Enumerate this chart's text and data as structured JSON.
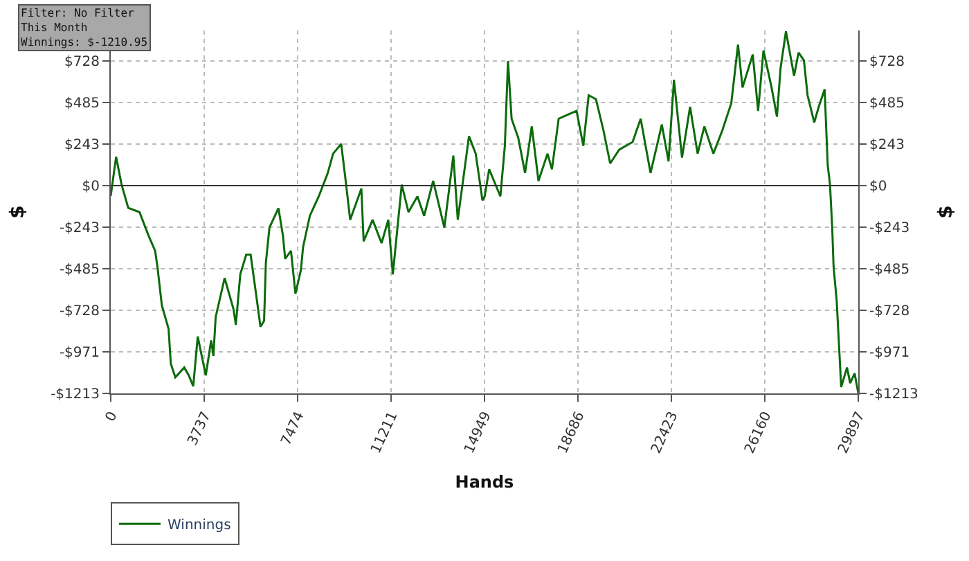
{
  "chart_data": {
    "type": "line",
    "xlabel": "Hands",
    "ylabel": "$",
    "y2label": "$",
    "annotations": [
      "Filter: No Filter\nThis Month\nWinnings: $-1210.95"
    ],
    "series": [
      {
        "name": "Winnings",
        "color": "#0b6b0b",
        "x": [
          0,
          215,
          430,
          700,
          1150,
          1506,
          1775,
          1866,
          2044,
          2313,
          2403,
          2582,
          2941,
          3120,
          3300,
          3479,
          3800,
          4016,
          4106,
          4196,
          4555,
          4912,
          5003,
          5181,
          5418,
          5595,
          5810,
          5988,
          6133,
          6205,
          6348,
          6707,
          6886,
          6976,
          7209,
          7387,
          7603,
          7693,
          7962,
          8321,
          8680,
          8894,
          9217,
          9397,
          9576,
          10024,
          10114,
          10473,
          10832,
          11101,
          11282,
          11639,
          11908,
          12266,
          12535,
          12895,
          13342,
          13702,
          13880,
          14328,
          14597,
          14866,
          14956,
          15135,
          15584,
          15763,
          15888,
          16032,
          16301,
          16570,
          16839,
          17108,
          17468,
          17646,
          17915,
          18276,
          18631,
          18900,
          19115,
          19406,
          19706,
          19975,
          20334,
          20872,
          21195,
          21589,
          22041,
          22310,
          22526,
          22848,
          23171,
          23472,
          23741,
          24102,
          24461,
          24819,
          25088,
          25268,
          25677,
          25892,
          26107,
          26430,
          26645,
          26790,
          27005,
          27330,
          27509,
          27724,
          27869,
          28137,
          28315,
          28552,
          28676,
          28767,
          28855,
          28910,
          29036,
          29214,
          29447,
          29573,
          29751,
          29897
        ],
        "values": [
          -60,
          168,
          7,
          -130,
          -155,
          -290,
          -381,
          -472,
          -699,
          -836,
          -1040,
          -1119,
          -1062,
          -1108,
          -1171,
          -881,
          -1108,
          -904,
          -994,
          -768,
          -540,
          -722,
          -813,
          -518,
          -404,
          -404,
          -631,
          -824,
          -790,
          -449,
          -245,
          -132,
          -291,
          -427,
          -381,
          -631,
          -495,
          -359,
          -177,
          -63,
          73,
          186,
          243,
          27,
          -200,
          -18,
          -325,
          -200,
          -336,
          -200,
          -518,
          5,
          -155,
          -63,
          -177,
          27,
          -245,
          175,
          -200,
          288,
          186,
          -86,
          -63,
          95,
          -63,
          232,
          727,
          390,
          277,
          73,
          345,
          27,
          186,
          95,
          390,
          413,
          436,
          232,
          527,
          504,
          322,
          129,
          209,
          254,
          390,
          73,
          356,
          141,
          617,
          163,
          459,
          186,
          345,
          186,
          322,
          481,
          822,
          572,
          765,
          436,
          788,
          572,
          402,
          686,
          900,
          640,
          776,
          731,
          527,
          368,
          459,
          561,
          118,
          5,
          -245,
          -472,
          -676,
          -1176,
          -1062,
          -1153,
          -1096,
          -1211
        ]
      }
    ],
    "xlim": [
      0,
      29897
    ],
    "xticks": [
      0,
      3737,
      7474,
      11211,
      14949,
      18686,
      22423,
      26160,
      29897
    ],
    "ylim": [
      -1213,
      905
    ],
    "yticks": [
      {
        "value": -1213,
        "label": "-$1213"
      },
      {
        "value": -971,
        "label": "-$971"
      },
      {
        "value": -728,
        "label": "-$728"
      },
      {
        "value": -485,
        "label": "-$485"
      },
      {
        "value": -243,
        "label": "-$243"
      },
      {
        "value": 0,
        "label": "$0"
      },
      {
        "value": 243,
        "label": "$243"
      },
      {
        "value": 485,
        "label": "$485"
      },
      {
        "value": 728,
        "label": "$728"
      }
    ],
    "y2lim": [
      -1213,
      905
    ],
    "y2ticks": [
      {
        "value": -1213,
        "label": "-$1213"
      },
      {
        "value": -971,
        "label": "-$971"
      },
      {
        "value": -728,
        "label": "-$728"
      },
      {
        "value": -485,
        "label": "-$485"
      },
      {
        "value": -243,
        "label": "-$243"
      },
      {
        "value": 0,
        "label": "$0"
      },
      {
        "value": 243,
        "label": "$243"
      },
      {
        "value": 485,
        "label": "$485"
      },
      {
        "value": 728,
        "label": "$728"
      }
    ],
    "ref_lines": [
      {
        "axis": "y",
        "value": 0,
        "color": "#333333"
      }
    ],
    "grid": true,
    "legend": "bottom left",
    "line_style": "solid",
    "marker": "none"
  }
}
